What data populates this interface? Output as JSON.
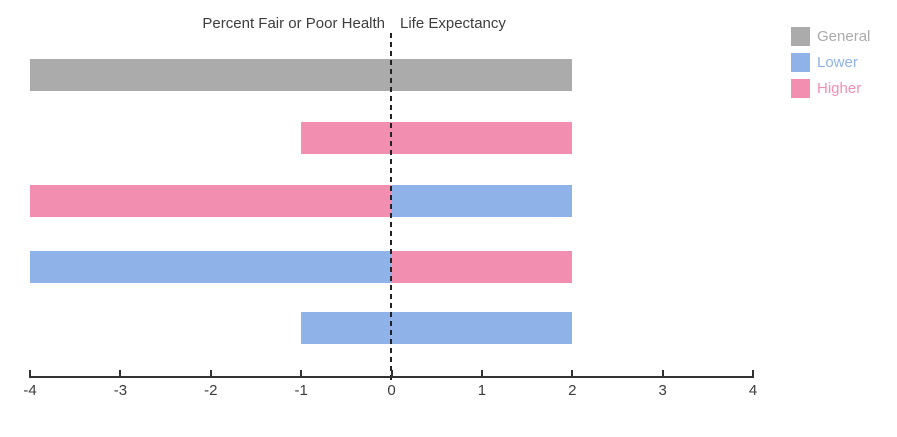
{
  "header": {
    "left_title": "Percent Fair or Poor Health",
    "right_title": "Life Expectancy"
  },
  "legend": {
    "items": [
      {
        "label": "General",
        "color": "#ababab"
      },
      {
        "label": "Lower",
        "color": "#8fb2e9"
      },
      {
        "label": "Higher",
        "color": "#f28fb0"
      }
    ]
  },
  "chart_data": {
    "type": "bar",
    "orientation": "horizontal",
    "diverging": true,
    "title": "",
    "column_headers": {
      "left": "Percent Fair or Poor Health",
      "right": "Life Expectancy"
    },
    "x_axis": {
      "min": -4,
      "max": 4,
      "ticks": [
        -4,
        -3,
        -2,
        -1,
        0,
        1,
        2,
        3,
        4
      ]
    },
    "zero_line_style": "dashed",
    "grid": false,
    "legend_position": "top-right",
    "groups": {
      "General": "#ababab",
      "Lower": "#8fb2e9",
      "Higher": "#f28fb0"
    },
    "legend_entries": [
      "General",
      "Lower",
      "Higher"
    ],
    "rows": [
      {
        "segments": [
          {
            "from": -4,
            "to": 2,
            "group": "General"
          }
        ]
      },
      {
        "segments": [
          {
            "from": -1,
            "to": 2,
            "group": "Higher"
          }
        ]
      },
      {
        "segments": [
          {
            "from": -4,
            "to": 0,
            "group": "Higher"
          },
          {
            "from": 0,
            "to": 2,
            "group": "Lower"
          }
        ]
      },
      {
        "segments": [
          {
            "from": -4,
            "to": 0,
            "group": "Lower"
          },
          {
            "from": 0,
            "to": 2,
            "group": "Higher"
          }
        ]
      },
      {
        "segments": [
          {
            "from": -1,
            "to": 2,
            "group": "Lower"
          }
        ]
      }
    ]
  }
}
